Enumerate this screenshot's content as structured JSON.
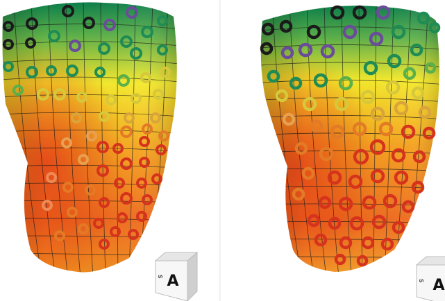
{
  "colors": {
    "top": "#0d7f4a",
    "upper": "#5cb04a",
    "middle": "#f4e92a",
    "lower": "#f5a11c",
    "apex": "#e8451a",
    "grid": "#1a1a1a",
    "ring_dark": "#1a1a1a",
    "ring_purple": "#6a4c9a",
    "ring_green": "#1e8c54",
    "ring_yellow": "#d6c83a",
    "ring_orange": "#e37a25",
    "ring_red": "#d6331d"
  },
  "panels": [
    {
      "name": "left-heart",
      "orientation_cube": {
        "face_label": "A",
        "side_label": "S"
      }
    },
    {
      "name": "right-heart",
      "orientation_cube": {
        "face_label": "A",
        "side_label": "S"
      }
    }
  ]
}
